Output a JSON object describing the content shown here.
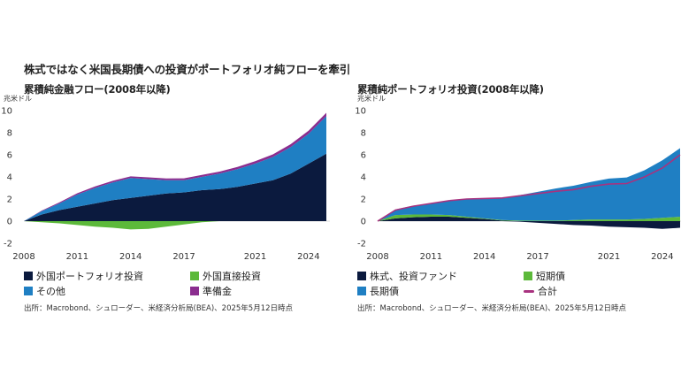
{
  "headline": "株式ではなく米国長期債への投資がポートフォリオ純フローを牽引",
  "colors": {
    "navy": "#0b1a3e",
    "blue": "#1f7fc3",
    "green": "#5cb93a",
    "purple": "#8b2d8f",
    "line": "#a8327f"
  },
  "chart_data": [
    {
      "type": "area",
      "title": "累積純金融フロー(2008年以降)",
      "ylabel": "兆米ドル",
      "ylim": [
        -2,
        10
      ],
      "yticks": [
        "-2",
        "0",
        "2",
        "4",
        "6",
        "8",
        "10"
      ],
      "xlim": [
        2008,
        2025.2
      ],
      "xticks": [
        "2008",
        "2011",
        "2014",
        "2017",
        "2021",
        "2024"
      ],
      "x": [
        2008,
        2009,
        2010,
        2011,
        2012,
        2013,
        2014,
        2015,
        2016,
        2017,
        2018,
        2019,
        2020,
        2021,
        2022,
        2023,
        2024,
        2025
      ],
      "positive_stack": [
        {
          "name": "外国ポートフォリオ投資",
          "color": "#0b1a3e",
          "values": [
            0,
            0.6,
            1.0,
            1.3,
            1.6,
            1.9,
            2.1,
            2.3,
            2.5,
            2.6,
            2.8,
            2.9,
            3.1,
            3.4,
            3.7,
            4.3,
            5.2,
            6.1
          ]
        },
        {
          "name": "その他",
          "color": "#1f7fc3",
          "values": [
            0,
            0.3,
            0.6,
            1.1,
            1.4,
            1.6,
            1.8,
            1.5,
            1.2,
            1.1,
            1.2,
            1.4,
            1.6,
            1.8,
            2.1,
            2.4,
            2.7,
            3.4
          ]
        },
        {
          "name": "準備金",
          "color": "#8b2d8f",
          "values": [
            0,
            0.05,
            0.1,
            0.12,
            0.14,
            0.15,
            0.15,
            0.16,
            0.16,
            0.17,
            0.18,
            0.18,
            0.2,
            0.22,
            0.24,
            0.26,
            0.28,
            0.3
          ]
        }
      ],
      "negative_stack": [
        {
          "name": "外国直接投資",
          "color": "#5cb93a",
          "values": [
            0,
            -0.1,
            -0.2,
            -0.35,
            -0.5,
            -0.6,
            -0.75,
            -0.7,
            -0.5,
            -0.3,
            -0.1,
            0,
            0,
            0,
            0,
            0,
            0,
            0
          ]
        }
      ],
      "legend": [
        {
          "name": "外国ポートフォリオ投資",
          "color": "#0b1a3e",
          "kind": "box"
        },
        {
          "name": "外国直接投資",
          "color": "#5cb93a",
          "kind": "box"
        },
        {
          "name": "その他",
          "color": "#1f7fc3",
          "kind": "box"
        },
        {
          "name": "準備金",
          "color": "#8b2d8f",
          "kind": "box"
        }
      ],
      "source": "出所：Macrobond、シュローダー、米経済分析局(BEA)、2025年5月12日時点"
    },
    {
      "type": "area",
      "title": "累積純ポートフォリオ投資(2008年以降)",
      "ylabel": "兆米ドル",
      "ylim": [
        -2,
        10
      ],
      "yticks": [
        "-2",
        "0",
        "2",
        "4",
        "6",
        "8",
        "10"
      ],
      "xlim": [
        2008,
        2025.2
      ],
      "xticks": [
        "2008",
        "2011",
        "2014",
        "2017",
        "2021",
        "2024"
      ],
      "x": [
        2008,
        2009,
        2010,
        2011,
        2012,
        2013,
        2014,
        2015,
        2016,
        2017,
        2018,
        2019,
        2020,
        2021,
        2022,
        2023,
        2024,
        2025
      ],
      "positive_stack": [
        {
          "name": "株式、投資ファンド",
          "color": "#0b1a3e",
          "values": [
            0,
            0.25,
            0.35,
            0.4,
            0.4,
            0.3,
            0.2,
            0.05,
            0,
            0,
            0,
            0,
            0,
            0,
            0,
            0,
            0,
            0
          ]
        },
        {
          "name": "短期債",
          "color": "#5cb93a",
          "values": [
            0,
            0.3,
            0.25,
            0.2,
            0.15,
            0.1,
            0.05,
            0.05,
            0.05,
            0.05,
            0.05,
            0.1,
            0.15,
            0.15,
            0.15,
            0.2,
            0.3,
            0.4
          ]
        },
        {
          "name": "長期債",
          "color": "#1f7fc3",
          "values": [
            0,
            0.5,
            0.8,
            1.0,
            1.3,
            1.6,
            1.8,
            2.0,
            2.3,
            2.6,
            2.9,
            3.1,
            3.4,
            3.7,
            3.8,
            4.4,
            5.2,
            6.2
          ]
        }
      ],
      "negative_stack": [
        {
          "name": "株式、投資ファンド",
          "color": "#0b1a3e",
          "values": [
            0,
            0,
            0,
            0,
            0,
            0,
            0,
            0,
            -0.05,
            -0.15,
            -0.25,
            -0.35,
            -0.4,
            -0.5,
            -0.55,
            -0.6,
            -0.7,
            -0.6
          ]
        }
      ],
      "line": {
        "name": "合計",
        "color": "#a8327f",
        "values": [
          0,
          1.0,
          1.35,
          1.6,
          1.85,
          2.0,
          2.05,
          2.1,
          2.3,
          2.5,
          2.7,
          2.85,
          3.15,
          3.35,
          3.4,
          4.0,
          4.8,
          6.0
        ]
      },
      "legend": [
        {
          "name": "株式、投資ファンド",
          "color": "#0b1a3e",
          "kind": "box"
        },
        {
          "name": "短期債",
          "color": "#5cb93a",
          "kind": "box"
        },
        {
          "name": "長期債",
          "color": "#1f7fc3",
          "kind": "box"
        },
        {
          "name": "合計",
          "color": "#a8327f",
          "kind": "line"
        }
      ],
      "source": "出所：Macrobond、シュローダー、米経済分析局(BEA)、2025年5月12日時点"
    }
  ]
}
